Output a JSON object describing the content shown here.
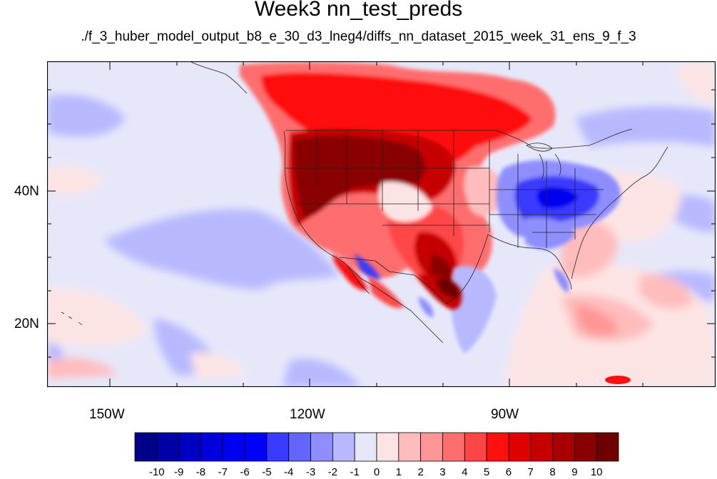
{
  "title": "Week3 nn_test_preds",
  "subtitle": "./f_3_huber_model_output_b8_e_30_d3_lneg4/diffs_nn_dataset_2015_week_31_ens_9_f_3",
  "lat_labels": [
    "40N",
    "20N"
  ],
  "lon_labels": [
    "150W",
    "120W",
    "90W"
  ],
  "colorbar": {
    "labels": [
      "-10",
      "-9",
      "-8",
      "-7",
      "-6",
      "-5",
      "-4",
      "-3",
      "-2",
      "-1",
      "0",
      "1",
      "2",
      "3",
      "4",
      "5",
      "6",
      "7",
      "8",
      "9",
      "10"
    ],
    "colors": [
      "#00008a",
      "#0000a8",
      "#0000c4",
      "#0000dc",
      "#0000f0",
      "#0000ff",
      "#3a3aff",
      "#6464ff",
      "#8e8eff",
      "#b8b8ff",
      "#e6e8fa",
      "#fde4e4",
      "#ffbcbc",
      "#ff9696",
      "#ff6e6e",
      "#ff4646",
      "#ff1010",
      "#e00000",
      "#c60000",
      "#a80000",
      "#8a0000",
      "#6e0000"
    ]
  }
}
